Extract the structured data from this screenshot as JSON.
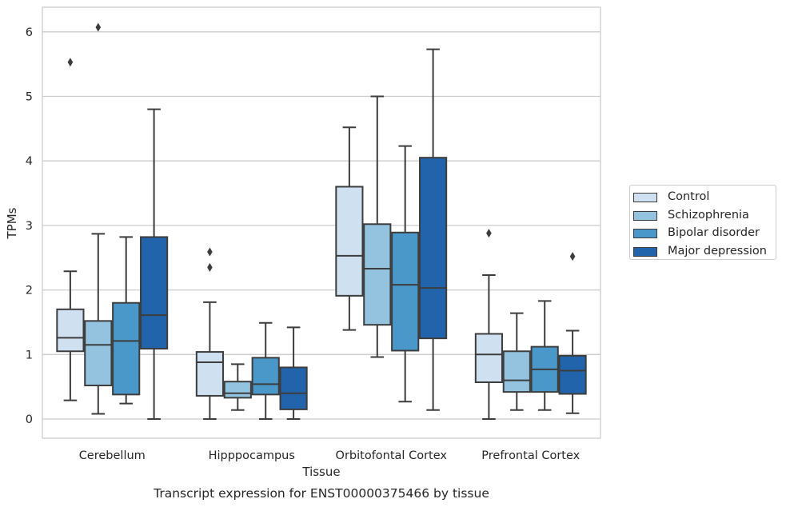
{
  "chart_data": {
    "type": "box",
    "title": "",
    "caption": "Transcript expression for ENST00000375466 by tissue",
    "xlabel": "Tissue",
    "ylabel": "TPMs",
    "ylim": [
      -0.3,
      6.4
    ],
    "yticks": [
      0,
      1,
      2,
      3,
      4,
      5,
      6
    ],
    "grid": true,
    "legend_position": "right",
    "categories": [
      "Cerebellum",
      "Hipppocampus",
      "Orbitofontal Cortex",
      "Prefrontal Cortex"
    ],
    "series": [
      {
        "name": "Control",
        "color": "#cfe0f1",
        "boxes": [
          {
            "whisker_low": 0.29,
            "q1": 1.05,
            "median": 1.26,
            "q3": 1.7,
            "whisker_high": 2.29,
            "outliers": [
              5.53
            ]
          },
          {
            "whisker_low": 0.0,
            "q1": 0.36,
            "median": 0.88,
            "q3": 1.04,
            "whisker_high": 1.81,
            "outliers": [
              2.35,
              2.59
            ]
          },
          {
            "whisker_low": 1.38,
            "q1": 1.91,
            "median": 2.53,
            "q3": 3.6,
            "whisker_high": 4.52,
            "outliers": []
          },
          {
            "whisker_low": 0.0,
            "q1": 0.57,
            "median": 1.0,
            "q3": 1.32,
            "whisker_high": 2.23,
            "outliers": [
              2.88
            ]
          }
        ]
      },
      {
        "name": "Schizophrenia",
        "color": "#93c3df",
        "boxes": [
          {
            "whisker_low": 0.08,
            "q1": 0.52,
            "median": 1.15,
            "q3": 1.52,
            "whisker_high": 2.87,
            "outliers": [
              6.07
            ]
          },
          {
            "whisker_low": 0.14,
            "q1": 0.33,
            "median": 0.4,
            "q3": 0.58,
            "whisker_high": 0.85,
            "outliers": []
          },
          {
            "whisker_low": 0.96,
            "q1": 1.46,
            "median": 2.33,
            "q3": 3.02,
            "whisker_high": 5.0,
            "outliers": []
          },
          {
            "whisker_low": 0.14,
            "q1": 0.42,
            "median": 0.6,
            "q3": 1.05,
            "whisker_high": 1.64,
            "outliers": []
          }
        ]
      },
      {
        "name": "Bipolar disorder",
        "color": "#4a98c9",
        "boxes": [
          {
            "whisker_low": 0.24,
            "q1": 0.38,
            "median": 1.21,
            "q3": 1.8,
            "whisker_high": 2.82,
            "outliers": []
          },
          {
            "whisker_low": 0.0,
            "q1": 0.38,
            "median": 0.54,
            "q3": 0.95,
            "whisker_high": 1.49,
            "outliers": []
          },
          {
            "whisker_low": 0.27,
            "q1": 1.06,
            "median": 2.08,
            "q3": 2.89,
            "whisker_high": 4.23,
            "outliers": []
          },
          {
            "whisker_low": 0.14,
            "q1": 0.42,
            "median": 0.77,
            "q3": 1.12,
            "whisker_high": 1.83,
            "outliers": []
          }
        ]
      },
      {
        "name": "Major depression",
        "color": "#2164ab",
        "boxes": [
          {
            "whisker_low": 0.0,
            "q1": 1.09,
            "median": 1.61,
            "q3": 2.82,
            "whisker_high": 4.8,
            "outliers": []
          },
          {
            "whisker_low": 0.0,
            "q1": 0.15,
            "median": 0.4,
            "q3": 0.8,
            "whisker_high": 1.42,
            "outliers": []
          },
          {
            "whisker_low": 0.14,
            "q1": 1.25,
            "median": 2.03,
            "q3": 4.05,
            "whisker_high": 5.73,
            "outliers": []
          },
          {
            "whisker_low": 0.09,
            "q1": 0.39,
            "median": 0.75,
            "q3": 0.98,
            "whisker_high": 1.37,
            "outliers": [
              2.52
            ]
          }
        ]
      }
    ]
  }
}
